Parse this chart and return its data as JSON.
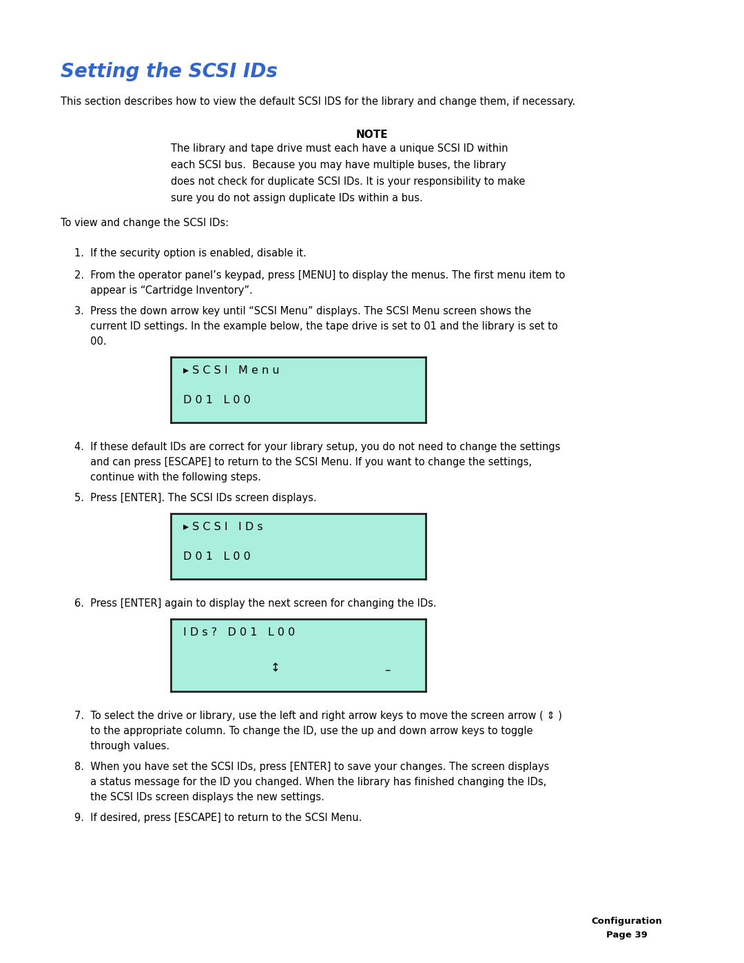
{
  "title": "Setting the SCSI IDs",
  "title_color": "#3366CC",
  "bg_color": "#FFFFFF",
  "screen_bg": "#AAEEDD",
  "screen_border": "#222222",
  "text_color": "#000000",
  "intro_text": "This section describes how to view the default SCSI IDS for the library and change them, if necessary.",
  "note_header": "NOTE",
  "note_lines": [
    "The library and tape drive must each have a unique SCSI ID within",
    "each SCSI bus.  Because you may have multiple buses, the library",
    "does not check for duplicate SCSI IDs. It is your responsibility to make",
    "sure you do not assign duplicate IDs within a bus."
  ],
  "to_view_text": "To view and change the SCSI IDs:",
  "step1": "1.  If the security option is enabled, disable it.",
  "step2_lines": [
    "2.  From the operator panel’s keypad, press [MENU] to display the menus. The first menu item to",
    "     appear is “Cartridge Inventory”."
  ],
  "step3_lines": [
    "3.  Press the down arrow key until “SCSI Menu” displays. The SCSI Menu screen shows the",
    "     current ID settings. In the example below, the tape drive is set to 01 and the library is set to",
    "     00."
  ],
  "screen1_line1": "▸ S C S I   M e n u",
  "screen1_line2": "D 0 1   L 0 0",
  "step4_lines": [
    "4.  If these default IDs are correct for your library setup, you do not need to change the settings",
    "     and can press [ESCAPE] to return to the SCSI Menu. If you want to change the settings,",
    "     continue with the following steps."
  ],
  "step5": "5.  Press [ENTER]. The SCSI IDs screen displays.",
  "screen2_line1": "▸ S C S I   I D s",
  "screen2_line2": "D 0 1   L 0 0",
  "step6": "6.  Press [ENTER] again to display the next screen for changing the IDs.",
  "screen3_line1": "I D s ?   D 0 1   L 0 0",
  "screen3_arrow": "↕",
  "screen3_dash": "–",
  "step7_lines": [
    "7.  To select the drive or library, use the left and right arrow keys to move the screen arrow ( ⇕ )",
    "     to the appropriate column. To change the ID, use the up and down arrow keys to toggle",
    "     through values."
  ],
  "step8_lines": [
    "8.  When you have set the SCSI IDs, press [ENTER] to save your changes. The screen displays",
    "     a status message for the ID you changed. When the library has finished changing the IDs,",
    "     the SCSI IDs screen displays the new settings."
  ],
  "step9": "9.  If desired, press [ESCAPE] to return to the SCSI Menu.",
  "footer_line1": "Configuration",
  "footer_line2": "Page 39"
}
